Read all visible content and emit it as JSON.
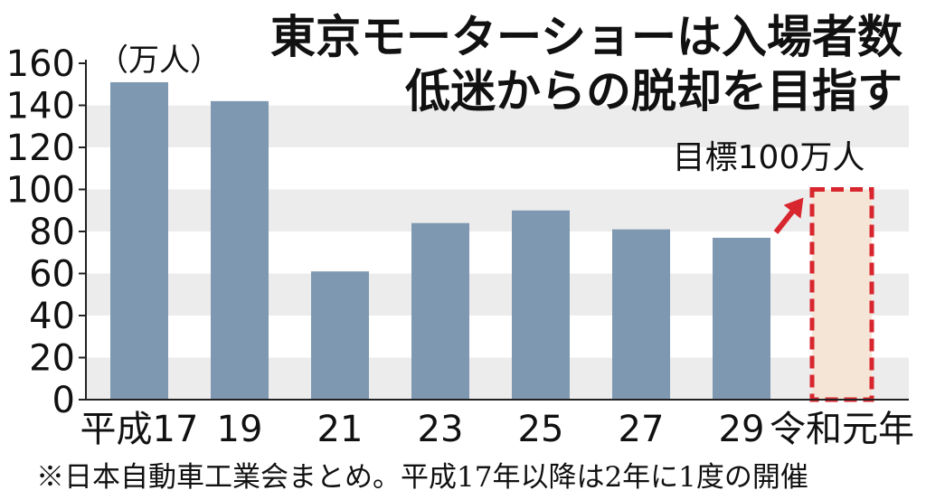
{
  "chart_data": {
    "type": "bar",
    "title_line1": "東京モーターショーは入場者数",
    "title_line2": "低迷からの脱却を目指す",
    "unit_label": "（万人）",
    "categories": [
      "平成17",
      "19",
      "21",
      "23",
      "25",
      "27",
      "29",
      "令和元年"
    ],
    "values": [
      151,
      142,
      61,
      84,
      90,
      81,
      77,
      null
    ],
    "target": {
      "category": "令和元年",
      "value": 100,
      "label": "目標100万人"
    },
    "ylim": [
      0,
      160
    ],
    "yticks": [
      0,
      20,
      40,
      60,
      80,
      100,
      120,
      140,
      160
    ],
    "grid": "alternating bands",
    "footnote": "※日本自動車工業会まとめ。平成17年以降は2年に1度の開催",
    "colors": {
      "bar": "#7f98b1",
      "band": "#ececec",
      "target_border": "#d8262e",
      "target_fill": "#f5e5d6",
      "arrow": "#d8262e",
      "axis": "#222222"
    }
  }
}
